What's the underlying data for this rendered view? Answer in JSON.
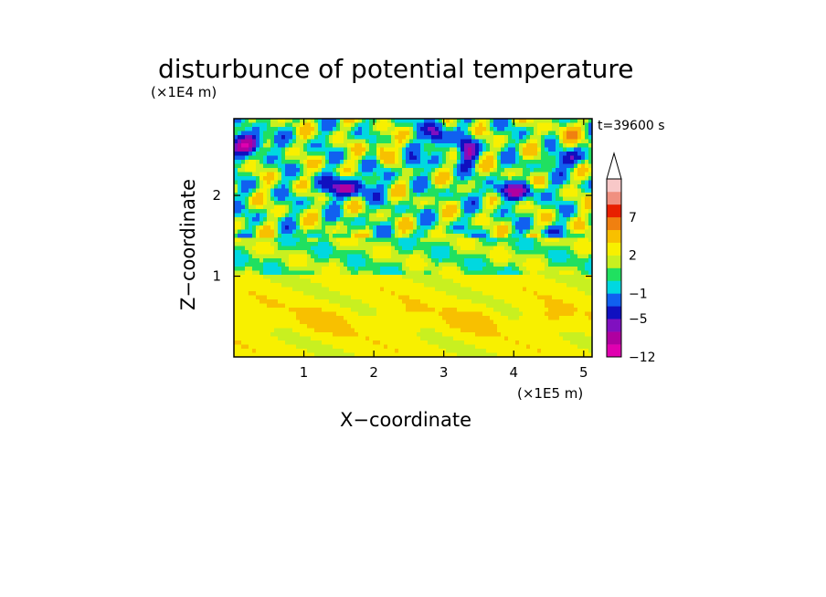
{
  "chart_data": {
    "type": "heatmap",
    "title": "disturbunce of potential temperature",
    "xlabel": "X−coordinate",
    "ylabel": "Z−coordinate",
    "x_unit": "(×1E5 m)",
    "y_unit": "(×1E4 m)",
    "annotation": "t=39600 s",
    "xlim": [
      0,
      5.12
    ],
    "ylim": [
      0,
      2.95
    ],
    "x_ticks": [
      "1",
      "2",
      "3",
      "4",
      "5"
    ],
    "y_ticks": [
      "1",
      "2"
    ],
    "colorbar": {
      "levels": [
        -12,
        -9,
        -7,
        -5,
        -3,
        -1,
        0,
        1,
        2,
        3,
        5,
        7,
        9,
        12
      ],
      "labels": [
        "−12",
        "−5",
        "−1",
        "2",
        "7"
      ],
      "colors": [
        "#e000b0",
        "#b000a0",
        "#8010c0",
        "#1010c0",
        "#1060f0",
        "#00d8e0",
        "#20e060",
        "#c8f020",
        "#f8f000",
        "#f8c000",
        "#f08010",
        "#e82000",
        "#f09080",
        "#f8c8c8"
      ],
      "extend": "max"
    }
  }
}
